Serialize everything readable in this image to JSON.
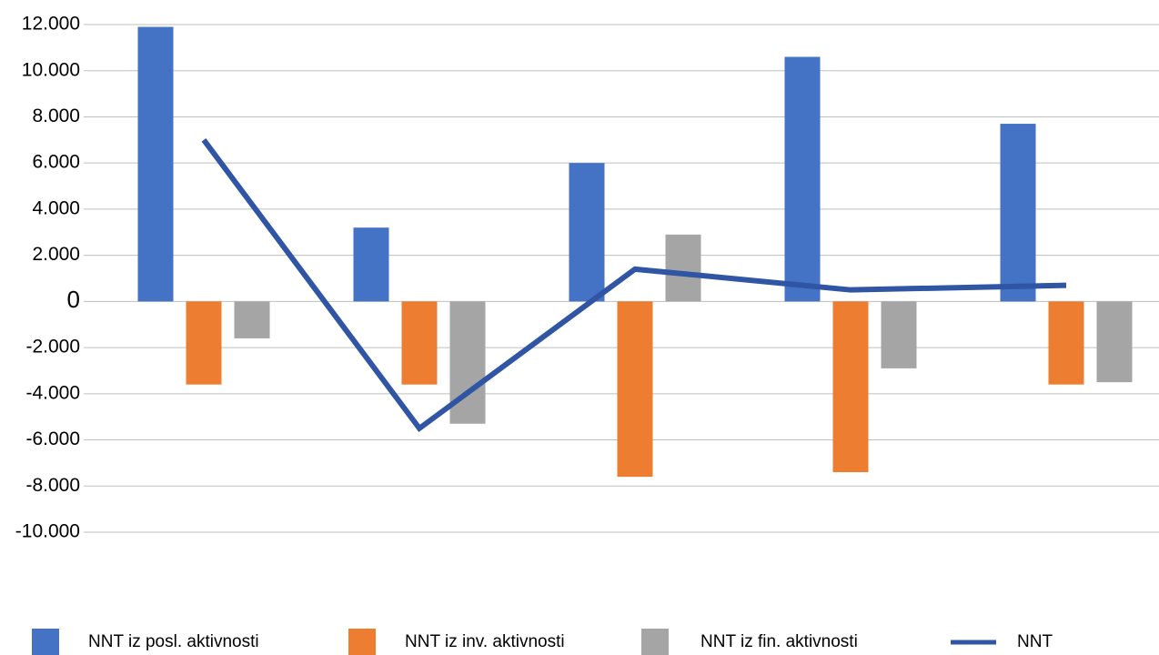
{
  "chart_data": {
    "type": "bar_line",
    "categories": [
      null,
      null,
      null,
      null,
      null
    ],
    "series": [
      {
        "name": "NNT iz posl. aktivnosti",
        "type": "bar",
        "color": "#4472c4",
        "values": [
          11900,
          3200,
          6000,
          10600,
          7700
        ]
      },
      {
        "name": "NNT iz inv. aktivnosti",
        "type": "bar",
        "color": "#ed7d31",
        "values": [
          -3600,
          -3600,
          -7600,
          -7400,
          -3600
        ]
      },
      {
        "name": "NNT iz fin. aktivnosti",
        "type": "bar",
        "color": "#a5a5a5",
        "values": [
          -1600,
          -5300,
          2900,
          -2900,
          -3500
        ]
      },
      {
        "name": "NNT",
        "type": "line",
        "color": "#2f55a4",
        "values": [
          7000,
          -5500,
          1400,
          500,
          700
        ]
      }
    ],
    "ylim": [
      -10000,
      12000
    ],
    "yticks": [
      {
        "value": -10000,
        "label": "-10.000"
      },
      {
        "value": -8000,
        "label": "-8.000"
      },
      {
        "value": -6000,
        "label": "-6.000"
      },
      {
        "value": -4000,
        "label": "-4.000"
      },
      {
        "value": -2000,
        "label": "-2.000"
      },
      0,
      {
        "value": 2000,
        "label": "2.000"
      },
      {
        "value": 4000,
        "label": "4.000"
      },
      {
        "value": 6000,
        "label": "6.000"
      },
      {
        "value": 8000,
        "label": "8.000"
      },
      {
        "value": 10000,
        "label": "10.000"
      },
      {
        "value": 12000,
        "label": "12.000"
      }
    ],
    "grid": true,
    "legend": "bottom"
  }
}
